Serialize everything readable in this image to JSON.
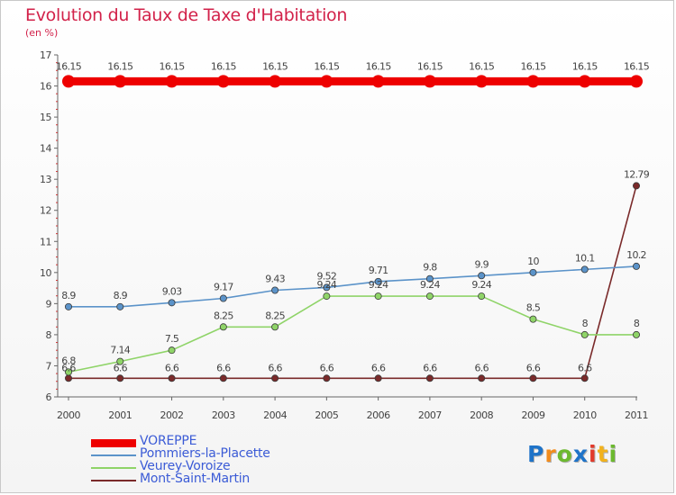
{
  "header": {
    "title": "Evolution du Taux de Taxe d'Habitation",
    "subtitle": "(en %)"
  },
  "logo": {
    "text": "Proxiti",
    "letters": [
      {
        "ch": "P",
        "color": "#1e73c8"
      },
      {
        "ch": "r",
        "color": "#f28c1c"
      },
      {
        "ch": "o",
        "color": "#6cb92f"
      },
      {
        "ch": "x",
        "color": "#1e73c8"
      },
      {
        "ch": "i",
        "color": "#e23a2b"
      },
      {
        "ch": "t",
        "color": "#f2b21c"
      },
      {
        "ch": "i",
        "color": "#6cb92f"
      }
    ]
  },
  "chart_data": {
    "type": "line",
    "title": "Evolution du Taux de Taxe d'Habitation",
    "subtitle": "(en %)",
    "x": [
      "2000",
      "2001",
      "2002",
      "2003",
      "2004",
      "2005",
      "2006",
      "2007",
      "2008",
      "2009",
      "2010",
      "2011"
    ],
    "ylim": [
      6,
      17
    ],
    "yticks": [
      "6",
      "7",
      "8",
      "9",
      "10",
      "11",
      "12",
      "13",
      "14",
      "15",
      "16",
      "17"
    ],
    "grid": false,
    "legend": "bottom-left",
    "series": [
      {
        "name": "VOREPPE",
        "color": "#ee0000",
        "values": [
          16.15,
          16.15,
          16.15,
          16.15,
          16.15,
          16.15,
          16.15,
          16.15,
          16.15,
          16.15,
          16.15,
          16.15
        ],
        "labels": [
          "16.15",
          "16.15",
          "16.15",
          "16.15",
          "16.15",
          "16.15",
          "16.15",
          "16.15",
          "16.15",
          "16.15",
          "16.15",
          "16.15"
        ]
      },
      {
        "name": "Pommiers-la-Placette",
        "color": "#5b93c9",
        "values": [
          8.9,
          8.9,
          9.03,
          9.17,
          9.43,
          9.52,
          9.71,
          9.8,
          9.9,
          10,
          10.1,
          10.2
        ],
        "labels": [
          "8.9",
          "8.9",
          "9.03",
          "9.17",
          "9.43",
          "9.52",
          "9.71",
          "9.8",
          "9.9",
          "10",
          "10.1",
          "10.2"
        ]
      },
      {
        "name": "Veurey-Voroize",
        "color": "#8fd468",
        "values": [
          6.8,
          7.14,
          7.5,
          8.25,
          8.25,
          9.24,
          9.24,
          9.24,
          9.24,
          8.5,
          8,
          8
        ],
        "labels": [
          "6.8",
          "7.14",
          "7.5",
          "8.25",
          "8.25",
          "9.24",
          "9.24",
          "9.24",
          "9.24",
          "8.5",
          "8",
          "8"
        ]
      },
      {
        "name": "Mont-Saint-Martin",
        "color": "#7a2a2a",
        "values": [
          6.6,
          6.6,
          6.6,
          6.6,
          6.6,
          6.6,
          6.6,
          6.6,
          6.6,
          6.6,
          6.6,
          12.79
        ],
        "labels": [
          "6.6",
          "6.6",
          "6.6",
          "6.6",
          "6.6",
          "6.6",
          "6.6",
          "6.6",
          "6.6",
          "6.6",
          "6.6",
          "12.79"
        ]
      }
    ]
  }
}
